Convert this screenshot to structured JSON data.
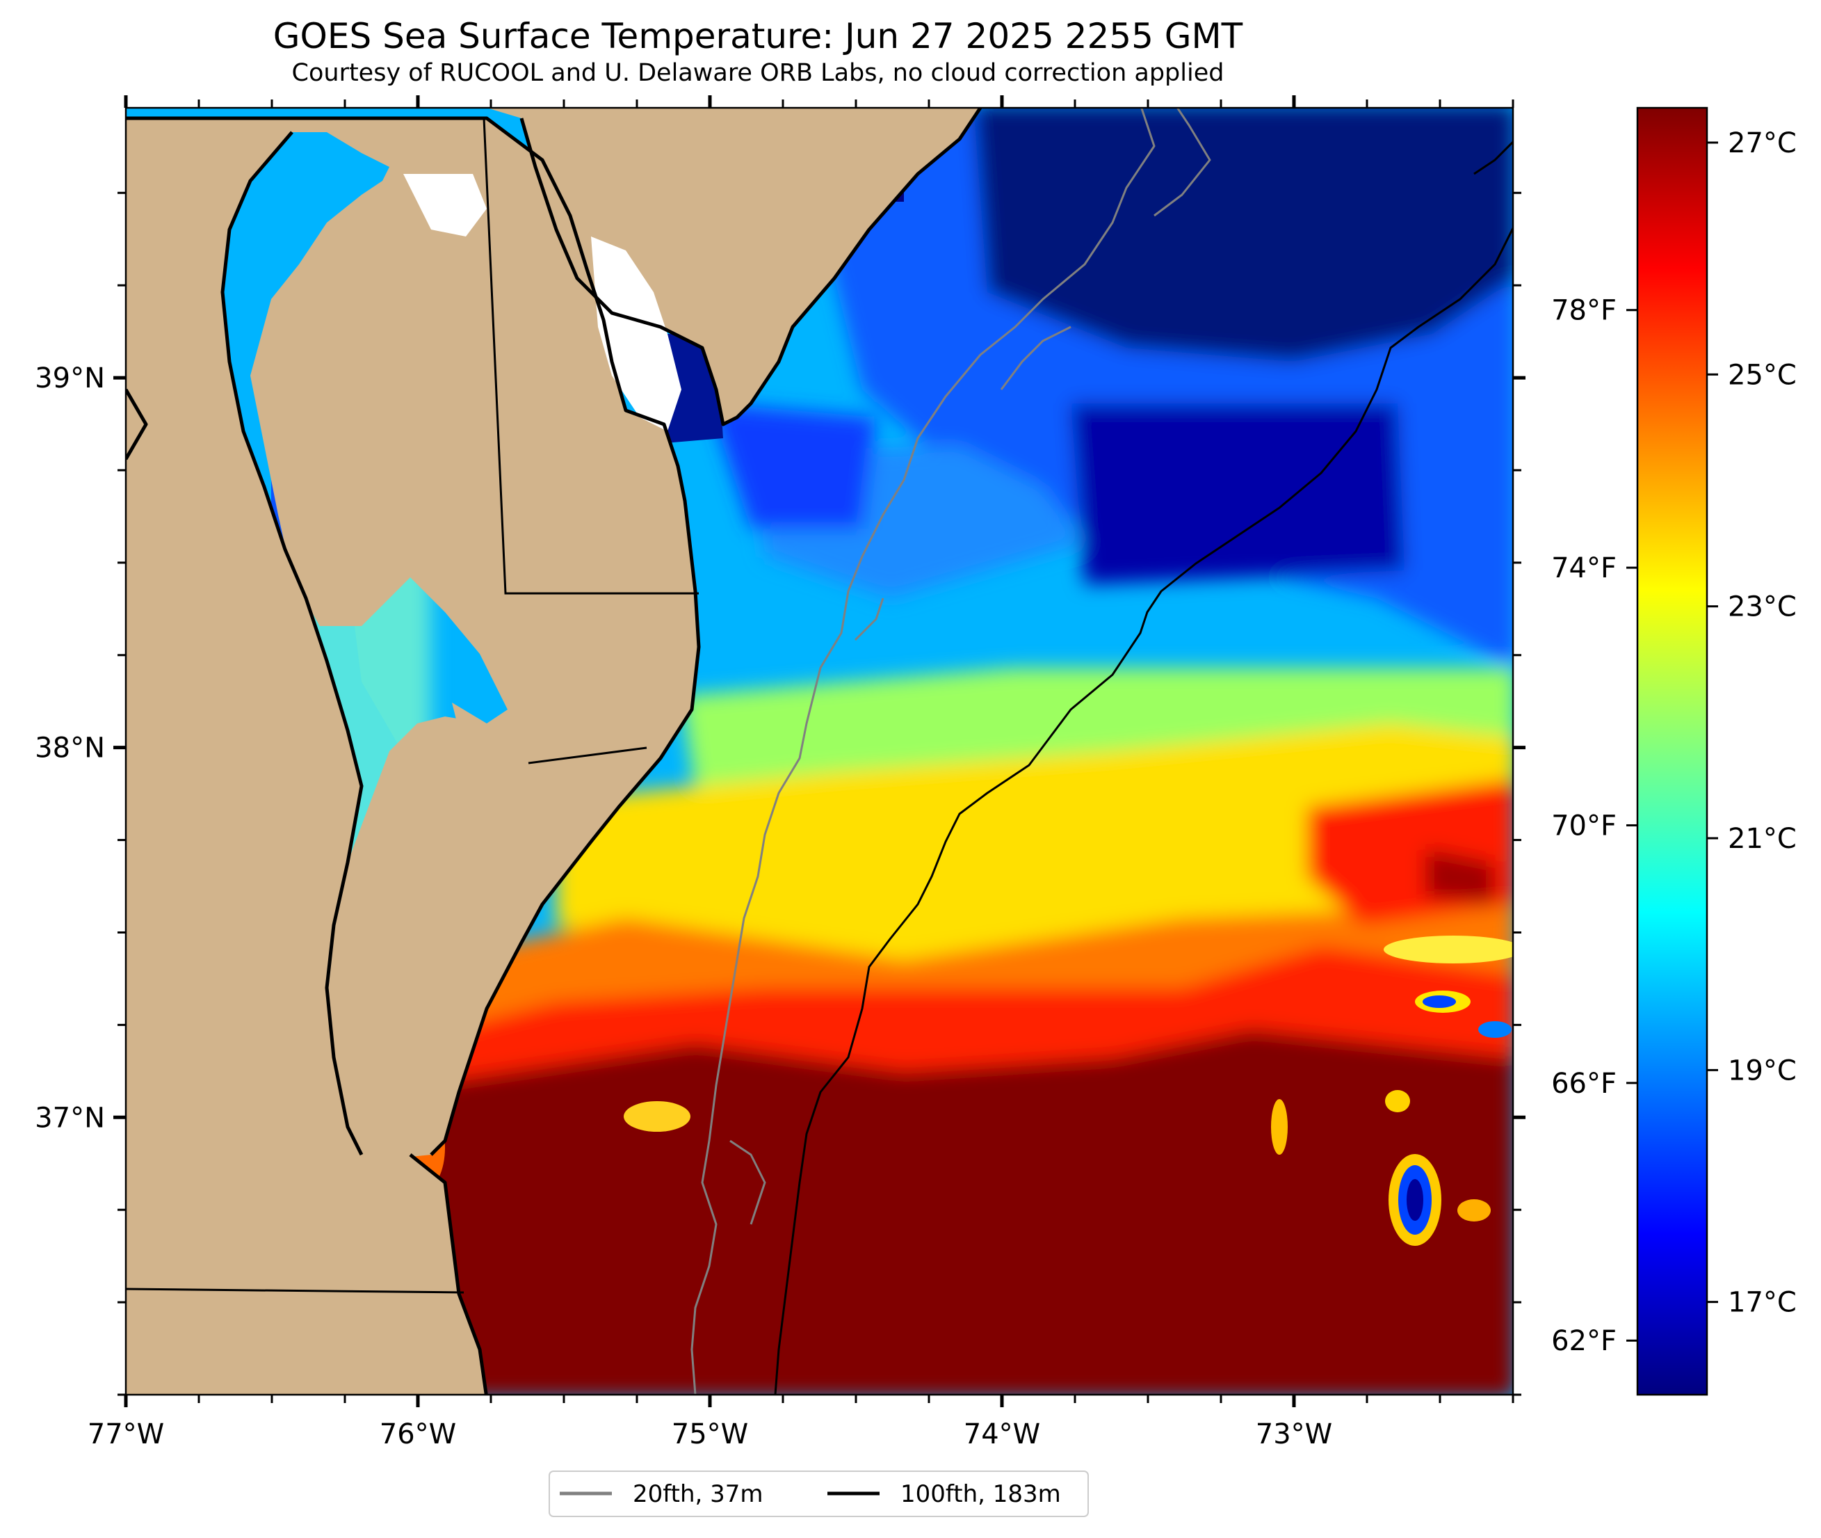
{
  "title": "GOES Sea Surface Temperature: Jun 27 2025 2255 GMT",
  "subtitle": "Courtesy of RUCOOL and U. Delaware ORB Labs, no cloud correction applied",
  "map": {
    "lon_range": [
      -77.0,
      -72.25
    ],
    "lat_range": [
      36.25,
      39.73
    ],
    "lon_ticks": [
      {
        "value": -77,
        "label": "77°W"
      },
      {
        "value": -76,
        "label": "76°W"
      },
      {
        "value": -75,
        "label": "75°W"
      },
      {
        "value": -74,
        "label": "74°W"
      },
      {
        "value": -73,
        "label": "73°W"
      }
    ],
    "lat_ticks": [
      {
        "value": 39,
        "label": "39°N"
      },
      {
        "value": 38,
        "label": "38°N"
      },
      {
        "value": 37,
        "label": "37°N"
      }
    ],
    "minor_lon_step": 0.25,
    "minor_lat_step": 0.25,
    "colors": {
      "land": "#d2b48c",
      "coastline": "#000000",
      "no_data": "#ffffff",
      "isobath_20fth": "#808080",
      "isobath_100fth": "#000000"
    }
  },
  "colorbar": {
    "colormap": "jet",
    "range_c": [
      16.2,
      27.3
    ],
    "celsius_ticks": [
      {
        "value": 17,
        "label": "17°C"
      },
      {
        "value": 19,
        "label": "19°C"
      },
      {
        "value": 21,
        "label": "21°C"
      },
      {
        "value": 23,
        "label": "23°C"
      },
      {
        "value": 25,
        "label": "25°C"
      },
      {
        "value": 27,
        "label": "27°C"
      }
    ],
    "fahrenheit_ticks": [
      {
        "value": 62,
        "label": "62°F"
      },
      {
        "value": 66,
        "label": "66°F"
      },
      {
        "value": 70,
        "label": "70°F"
      },
      {
        "value": 74,
        "label": "74°F"
      },
      {
        "value": 78,
        "label": "78°F"
      }
    ]
  },
  "legend": {
    "items": [
      {
        "label": "20fth, 37m",
        "color": "#808080"
      },
      {
        "label": "100fth, 183m",
        "color": "#000000"
      }
    ]
  }
}
